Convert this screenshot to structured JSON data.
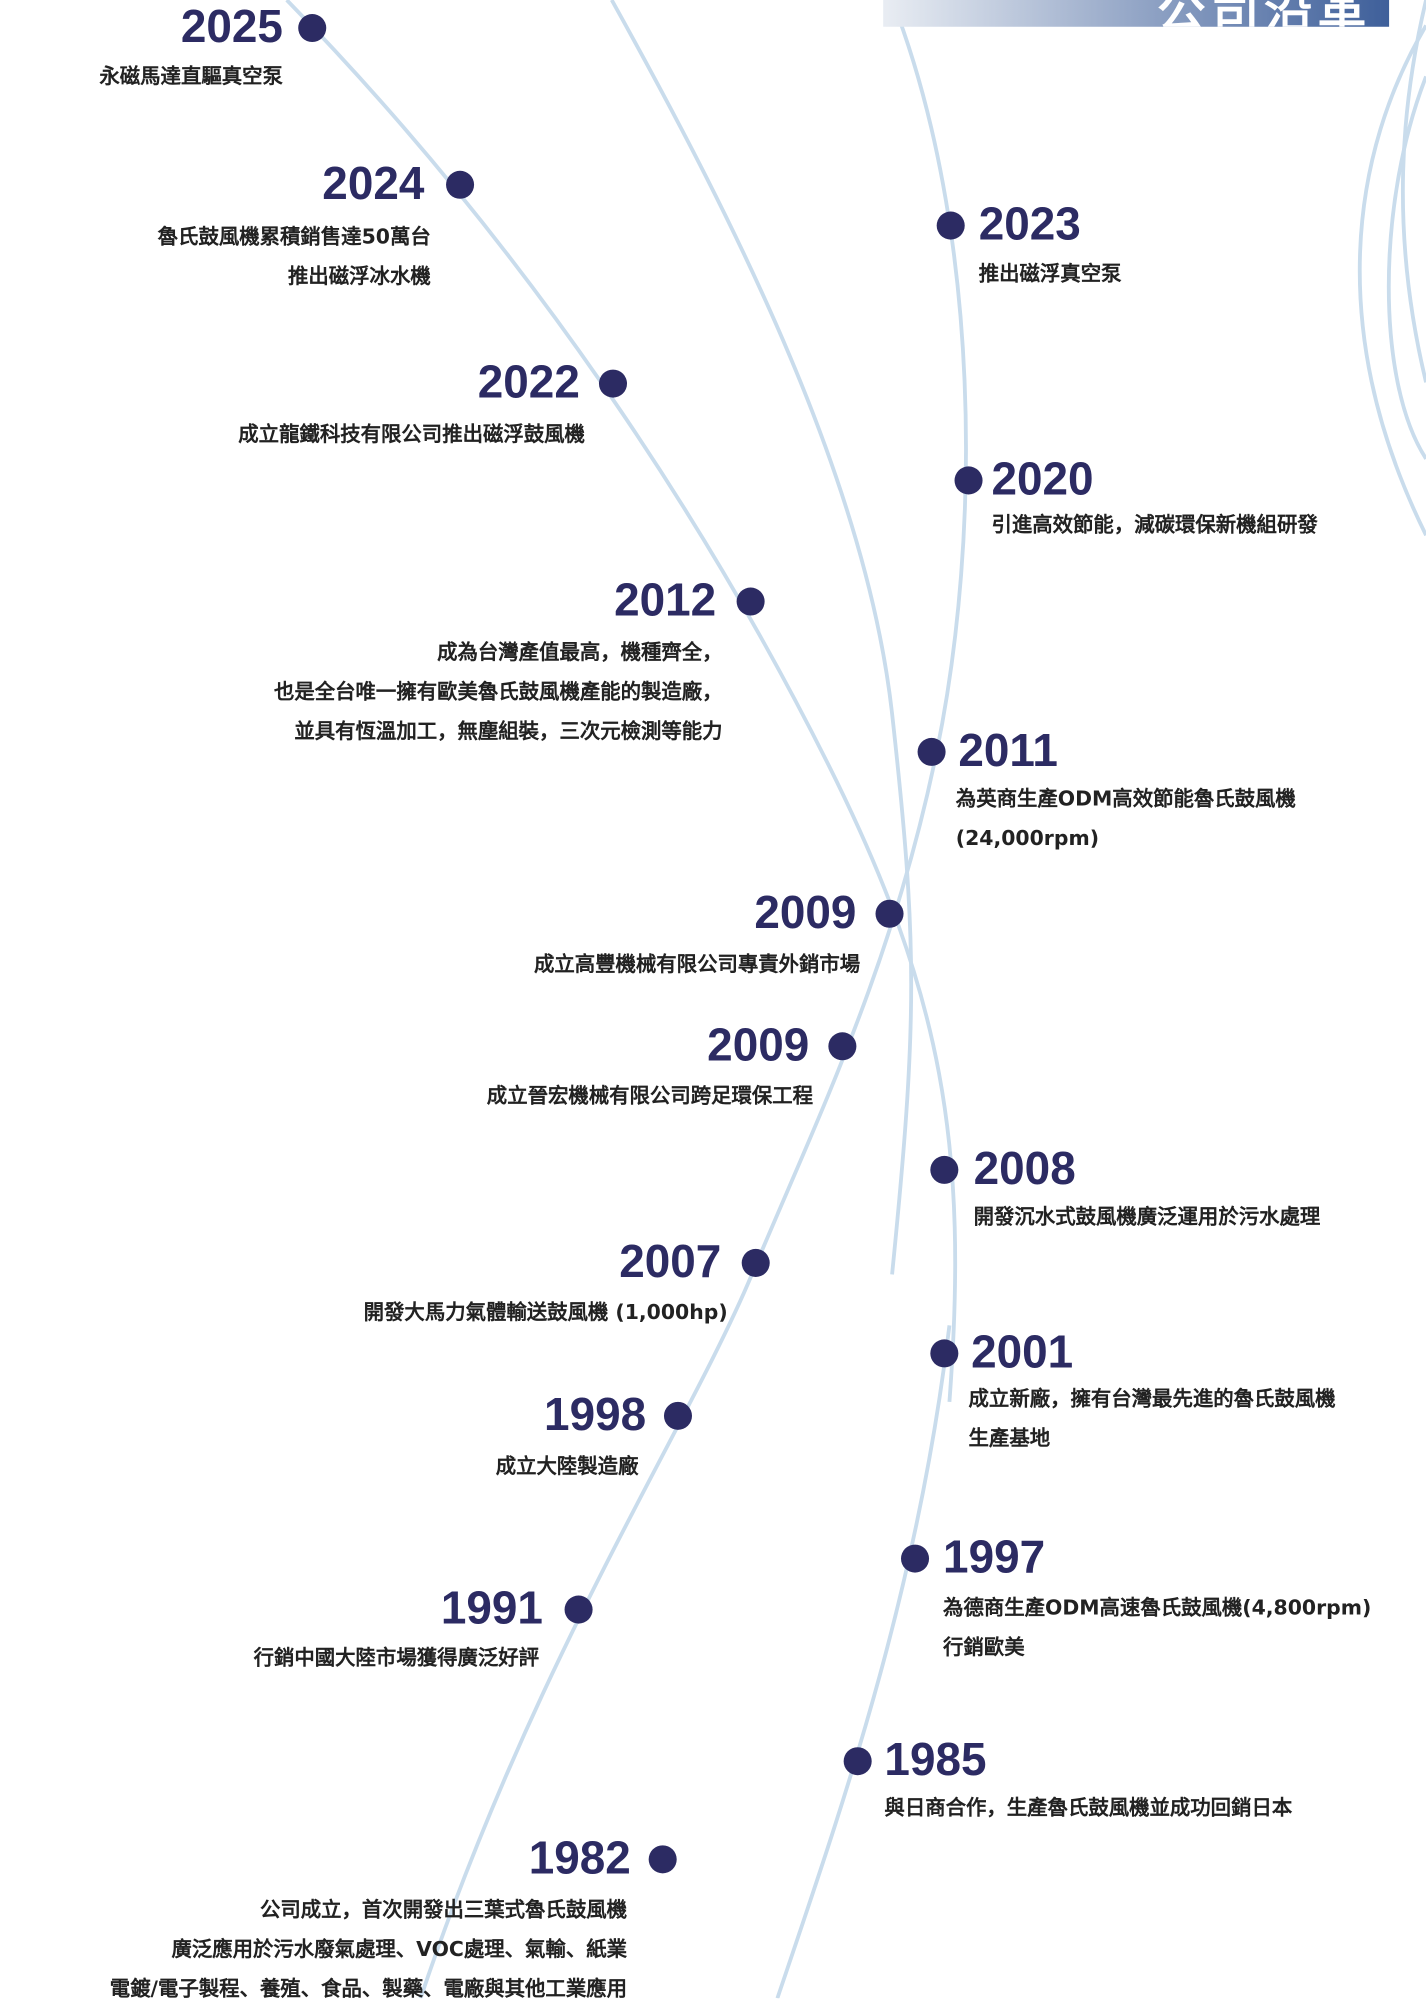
{
  "header": {
    "title": "公司沿革"
  },
  "events": [
    {
      "year": "2025",
      "lines": [
        "永磁馬達直驅真空泵"
      ]
    },
    {
      "year": "2024",
      "lines": [
        "魯氏鼓風機累積銷售達50萬台",
        "推出磁浮冰水機"
      ]
    },
    {
      "year": "2023",
      "lines": [
        "推出磁浮真空泵"
      ]
    },
    {
      "year": "2022",
      "lines": [
        "成立龍鐵科技有限公司推出磁浮鼓風機"
      ]
    },
    {
      "year": "2020",
      "lines": [
        "引進高效節能，減碳環保新機組研發"
      ]
    },
    {
      "year": "2012",
      "lines": [
        "成為台灣產值最高，機種齊全，",
        "也是全台唯一擁有歐美魯氏鼓風機產能的製造廠，",
        "並具有恆溫加工，無塵組裝，三次元檢測等能力"
      ]
    },
    {
      "year": "2011",
      "lines": [
        "為英商生產ODM高效節能魯氏鼓風機",
        "(24,000rpm)"
      ]
    },
    {
      "year": "2009",
      "lines": [
        "成立高豐機械有限公司專責外銷市場"
      ]
    },
    {
      "year": "2009",
      "lines": [
        "成立晉宏機械有限公司跨足環保工程"
      ]
    },
    {
      "year": "2008",
      "lines": [
        "開發沉水式鼓風機廣泛運用於污水處理"
      ]
    },
    {
      "year": "2007",
      "lines": [
        "開發大馬力氣體輸送鼓風機 (1,000hp)"
      ]
    },
    {
      "year": "2001",
      "lines": [
        "成立新廠，擁有台灣最先進的魯氏鼓風機",
        "生產基地"
      ]
    },
    {
      "year": "1998",
      "lines": [
        "成立大陸製造廠"
      ]
    },
    {
      "year": "1997",
      "lines": [
        "為德商生產ODM高速魯氏鼓風機(4,800rpm)",
        "行銷歐美"
      ]
    },
    {
      "year": "1991",
      "lines": [
        "行銷中國大陸市場獲得廣泛好評"
      ]
    },
    {
      "year": "1985",
      "lines": [
        "與日商合作，生產魯氏鼓風機並成功回銷日本"
      ]
    },
    {
      "year": "1982",
      "lines": [
        "公司成立，首次開發出三葉式魯氏鼓風機",
        "廣泛應用於污水廢氣處理、VOC處理、氣輸、紙業",
        "電鍍/電子製程、養殖、食品、製藥、電廠與其他工業應用"
      ]
    }
  ]
}
